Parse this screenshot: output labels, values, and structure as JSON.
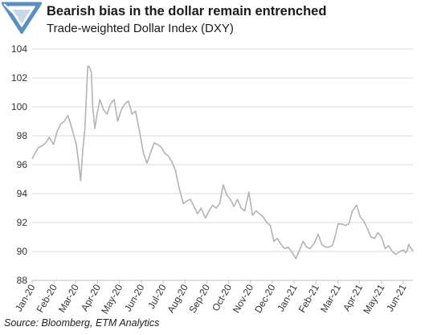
{
  "header": {
    "title": "Bearish bias in the dollar remain entrenched",
    "subtitle": "Trade-weighted Dollar Index (DXY)"
  },
  "footer": {
    "source": "Source: Bloomberg, ETM Analytics"
  },
  "logo": {
    "icon": "triangle-logo-icon",
    "color": "#5b8fc0"
  },
  "colors": {
    "line": "#b3b3b3",
    "grid": "#d9d9d9",
    "axis": "#bfbfbf",
    "text": "#333333"
  },
  "chart_data": {
    "type": "line",
    "title": "Bearish bias in the dollar remain entrenched",
    "subtitle": "Trade-weighted Dollar Index (DXY)",
    "xlabel": "",
    "ylabel": "",
    "ylim": [
      88,
      104
    ],
    "yticks": [
      88,
      90,
      92,
      94,
      96,
      98,
      100,
      102,
      104
    ],
    "xticks": [
      "Jan-20",
      "Feb-20",
      "Mar-20",
      "Apr-20",
      "May-20",
      "Jun-20",
      "Jul-20",
      "Aug-20",
      "Sep-20",
      "Oct-20",
      "Nov-20",
      "Dec-20",
      "Jan-21",
      "Feb-21",
      "Mar-21",
      "Apr-21",
      "May-21",
      "Jun-21"
    ],
    "xrange": [
      "2020-01-01",
      "2021-06-18"
    ],
    "grid": "horizontal",
    "legend": "none",
    "series": [
      {
        "points": [
          [
            "2020-01-01",
            96.4
          ],
          [
            "2020-01-05",
            96.8
          ],
          [
            "2020-01-10",
            97.2
          ],
          [
            "2020-01-15",
            97.3
          ],
          [
            "2020-01-20",
            97.5
          ],
          [
            "2020-01-25",
            97.9
          ],
          [
            "2020-01-31",
            97.4
          ],
          [
            "2020-02-05",
            98.3
          ],
          [
            "2020-02-10",
            98.8
          ],
          [
            "2020-02-15",
            99.0
          ],
          [
            "2020-02-20",
            99.4
          ],
          [
            "2020-02-23",
            99.0
          ],
          [
            "2020-02-28",
            98.1
          ],
          [
            "2020-03-03",
            97.4
          ],
          [
            "2020-03-06",
            96.2
          ],
          [
            "2020-03-09",
            94.9
          ],
          [
            "2020-03-12",
            97.0
          ],
          [
            "2020-03-15",
            98.5
          ],
          [
            "2020-03-19",
            102.8
          ],
          [
            "2020-03-21",
            102.8
          ],
          [
            "2020-03-24",
            102.4
          ],
          [
            "2020-03-26",
            100.0
          ],
          [
            "2020-03-29",
            98.5
          ],
          [
            "2020-04-01",
            99.5
          ],
          [
            "2020-04-05",
            100.5
          ],
          [
            "2020-04-10",
            99.8
          ],
          [
            "2020-04-15",
            99.5
          ],
          [
            "2020-04-20",
            100.2
          ],
          [
            "2020-04-25",
            100.5
          ],
          [
            "2020-04-30",
            99.0
          ],
          [
            "2020-05-05",
            99.8
          ],
          [
            "2020-05-10",
            100.2
          ],
          [
            "2020-05-15",
            100.4
          ],
          [
            "2020-05-20",
            99.5
          ],
          [
            "2020-05-25",
            99.7
          ],
          [
            "2020-05-31",
            98.2
          ],
          [
            "2020-06-05",
            96.8
          ],
          [
            "2020-06-10",
            96.1
          ],
          [
            "2020-06-15",
            96.8
          ],
          [
            "2020-06-20",
            97.5
          ],
          [
            "2020-06-25",
            97.4
          ],
          [
            "2020-06-30",
            97.2
          ],
          [
            "2020-07-05",
            96.8
          ],
          [
            "2020-07-10",
            96.6
          ],
          [
            "2020-07-15",
            96.2
          ],
          [
            "2020-07-20",
            95.6
          ],
          [
            "2020-07-25",
            94.4
          ],
          [
            "2020-07-31",
            93.3
          ],
          [
            "2020-08-05",
            93.5
          ],
          [
            "2020-08-10",
            93.6
          ],
          [
            "2020-08-15",
            93.1
          ],
          [
            "2020-08-20",
            92.6
          ],
          [
            "2020-08-25",
            93.0
          ],
          [
            "2020-08-31",
            92.3
          ],
          [
            "2020-09-05",
            92.8
          ],
          [
            "2020-09-10",
            93.2
          ],
          [
            "2020-09-15",
            93.0
          ],
          [
            "2020-09-20",
            93.3
          ],
          [
            "2020-09-25",
            94.6
          ],
          [
            "2020-09-30",
            93.9
          ],
          [
            "2020-10-05",
            93.6
          ],
          [
            "2020-10-10",
            93.1
          ],
          [
            "2020-10-15",
            93.6
          ],
          [
            "2020-10-20",
            93.0
          ],
          [
            "2020-10-25",
            92.8
          ],
          [
            "2020-10-31",
            94.1
          ],
          [
            "2020-11-05",
            92.5
          ],
          [
            "2020-11-10",
            92.8
          ],
          [
            "2020-11-15",
            92.6
          ],
          [
            "2020-11-20",
            92.4
          ],
          [
            "2020-11-25",
            92.0
          ],
          [
            "2020-11-30",
            91.8
          ],
          [
            "2020-12-05",
            90.7
          ],
          [
            "2020-12-10",
            90.9
          ],
          [
            "2020-12-15",
            90.5
          ],
          [
            "2020-12-20",
            90.2
          ],
          [
            "2020-12-25",
            90.3
          ],
          [
            "2020-12-31",
            89.9
          ],
          [
            "2021-01-05",
            89.5
          ],
          [
            "2021-01-10",
            90.1
          ],
          [
            "2021-01-15",
            90.7
          ],
          [
            "2021-01-20",
            90.3
          ],
          [
            "2021-01-25",
            90.2
          ],
          [
            "2021-01-31",
            90.6
          ],
          [
            "2021-02-05",
            91.2
          ],
          [
            "2021-02-10",
            90.5
          ],
          [
            "2021-02-15",
            90.3
          ],
          [
            "2021-02-20",
            90.3
          ],
          [
            "2021-02-25",
            90.4
          ],
          [
            "2021-02-28",
            90.9
          ],
          [
            "2021-03-05",
            91.9
          ],
          [
            "2021-03-10",
            91.9
          ],
          [
            "2021-03-15",
            91.8
          ],
          [
            "2021-03-20",
            91.9
          ],
          [
            "2021-03-25",
            92.8
          ],
          [
            "2021-03-31",
            93.2
          ],
          [
            "2021-04-05",
            92.4
          ],
          [
            "2021-04-10",
            92.1
          ],
          [
            "2021-04-15",
            91.6
          ],
          [
            "2021-04-20",
            91.0
          ],
          [
            "2021-04-25",
            90.9
          ],
          [
            "2021-04-30",
            91.3
          ],
          [
            "2021-05-05",
            91.0
          ],
          [
            "2021-05-10",
            90.2
          ],
          [
            "2021-05-15",
            90.4
          ],
          [
            "2021-05-20",
            90.0
          ],
          [
            "2021-05-25",
            89.8
          ],
          [
            "2021-05-31",
            90.0
          ],
          [
            "2021-06-05",
            90.1
          ],
          [
            "2021-06-08",
            89.9
          ],
          [
            "2021-06-10",
            90.1
          ],
          [
            "2021-06-12",
            90.5
          ],
          [
            "2021-06-14",
            90.3
          ],
          [
            "2021-06-16",
            90.2
          ],
          [
            "2021-06-18",
            90.0
          ]
        ]
      }
    ]
  }
}
